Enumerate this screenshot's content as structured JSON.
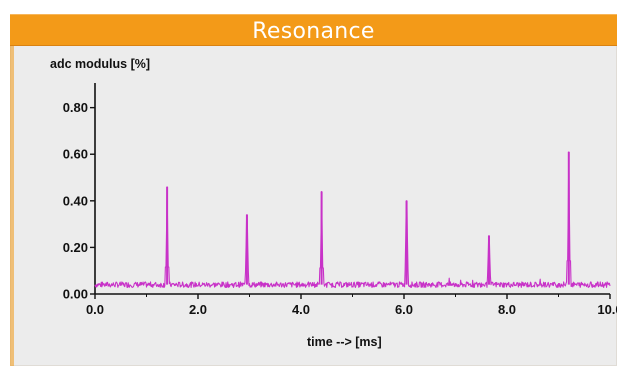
{
  "window": {
    "title": "Resonance"
  },
  "colors": {
    "title_bar": "#f39a18",
    "panel_background": "#ececec",
    "series_line": "#c832c8",
    "axis": "#111111"
  },
  "chart_data": {
    "type": "line",
    "title": "",
    "ylabel": "adc modulus [%]",
    "xlabel": "time --> [ms]",
    "xlim": [
      0.0,
      10.0
    ],
    "ylim": [
      0.0,
      0.88
    ],
    "xticks": [
      "0.0",
      "2.0",
      "4.0",
      "6.0",
      "8.0",
      "10.0"
    ],
    "xtick_values": [
      0,
      2,
      4,
      6,
      8,
      10
    ],
    "yticks": [
      "0.00",
      "0.20",
      "0.40",
      "0.60",
      "0.80"
    ],
    "ytick_values": [
      0.0,
      0.2,
      0.4,
      0.6,
      0.8
    ],
    "grid": false,
    "legend": "none",
    "baseline_level": 0.04,
    "baseline_noise": 0.012,
    "series": [
      {
        "peaks": [
          {
            "x": 1.4,
            "y": 0.46
          },
          {
            "x": 2.95,
            "y": 0.34
          },
          {
            "x": 4.4,
            "y": 0.44
          },
          {
            "x": 6.05,
            "y": 0.4
          },
          {
            "x": 7.65,
            "y": 0.25
          },
          {
            "x": 9.2,
            "y": 0.61
          }
        ]
      }
    ]
  }
}
